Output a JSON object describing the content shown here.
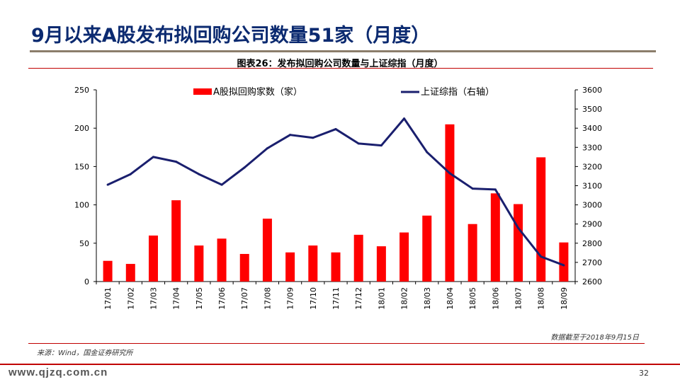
{
  "slide": {
    "title": "9月以来A股发布拟回购公司数量51家（月度）",
    "page_number": "32",
    "watermark": "www.qjzq.com.cn"
  },
  "figure": {
    "title": "图表26：发布拟回购公司数量与上证综指（月度）",
    "note": "数据截至于2018年9月15日",
    "source": "来源：Wind，国金证券研究所"
  },
  "colors": {
    "bar": "#ff0000",
    "line": "#1a1f6e",
    "title": "#0b2a70",
    "accent_rule": "#c00000"
  },
  "chart_data": {
    "type": "bar+line",
    "categories": [
      "17/01",
      "17/02",
      "17/03",
      "17/04",
      "17/05",
      "17/06",
      "17/07",
      "17/08",
      "17/09",
      "17/10",
      "17/11",
      "17/12",
      "18/01",
      "18/02",
      "18/03",
      "18/04",
      "18/05",
      "18/06",
      "18/07",
      "18/08",
      "18/09"
    ],
    "series": [
      {
        "name": "A股拟回购家数（家）",
        "type": "bar",
        "axis": "left",
        "values": [
          27,
          23,
          60,
          106,
          47,
          56,
          36,
          82,
          38,
          47,
          38,
          61,
          46,
          64,
          86,
          205,
          75,
          115,
          101,
          162,
          51
        ]
      },
      {
        "name": "上证综指（右轴）",
        "type": "line",
        "axis": "right",
        "values": [
          3105,
          3160,
          3250,
          3225,
          3160,
          3105,
          3195,
          3295,
          3365,
          3350,
          3395,
          3320,
          3310,
          3450,
          3275,
          3165,
          3085,
          3080,
          2880,
          2730,
          2685
        ]
      }
    ],
    "y_left": {
      "lim": [
        0,
        250
      ],
      "ticks": [
        "0",
        "50",
        "100",
        "150",
        "200",
        "250"
      ]
    },
    "y_right": {
      "lim": [
        2600,
        3600
      ],
      "ticks": [
        "2600",
        "2700",
        "2800",
        "2900",
        "3000",
        "3100",
        "3200",
        "3300",
        "3400",
        "3500",
        "3600"
      ]
    },
    "legend_position": "top"
  }
}
